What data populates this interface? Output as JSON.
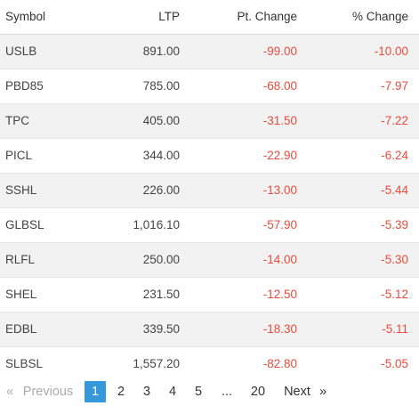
{
  "table": {
    "headers": {
      "symbol": "Symbol",
      "ltp": "LTP",
      "pt_change": "Pt. Change",
      "pct_change": "% Change"
    },
    "rows": [
      {
        "symbol": "USLB",
        "ltp": "891.00",
        "pt_change": "-99.00",
        "pct_change": "-10.00"
      },
      {
        "symbol": "PBD85",
        "ltp": "785.00",
        "pt_change": "-68.00",
        "pct_change": "-7.97"
      },
      {
        "symbol": "TPC",
        "ltp": "405.00",
        "pt_change": "-31.50",
        "pct_change": "-7.22"
      },
      {
        "symbol": "PICL",
        "ltp": "344.00",
        "pt_change": "-22.90",
        "pct_change": "-6.24"
      },
      {
        "symbol": "SSHL",
        "ltp": "226.00",
        "pt_change": "-13.00",
        "pct_change": "-5.44"
      },
      {
        "symbol": "GLBSL",
        "ltp": "1,016.10",
        "pt_change": "-57.90",
        "pct_change": "-5.39"
      },
      {
        "symbol": "RLFL",
        "ltp": "250.00",
        "pt_change": "-14.00",
        "pct_change": "-5.30"
      },
      {
        "symbol": "SHEL",
        "ltp": "231.50",
        "pt_change": "-12.50",
        "pct_change": "-5.12"
      },
      {
        "symbol": "EDBL",
        "ltp": "339.50",
        "pt_change": "-18.30",
        "pct_change": "-5.11"
      },
      {
        "symbol": "SLBSL",
        "ltp": "1,557.20",
        "pt_change": "-82.80",
        "pct_change": "-5.05"
      }
    ]
  },
  "pagination": {
    "prev_arrow": "«",
    "prev_label": "Previous",
    "pages": [
      "1",
      "2",
      "3",
      "4",
      "5"
    ],
    "ellipsis": "...",
    "last_page": "20",
    "next_label": "Next",
    "next_arrow": "»",
    "current_page": "1"
  },
  "colors": {
    "negative": "#e74c3c",
    "active_page": "#3498db",
    "row_stripe": "#f2f2f2"
  }
}
